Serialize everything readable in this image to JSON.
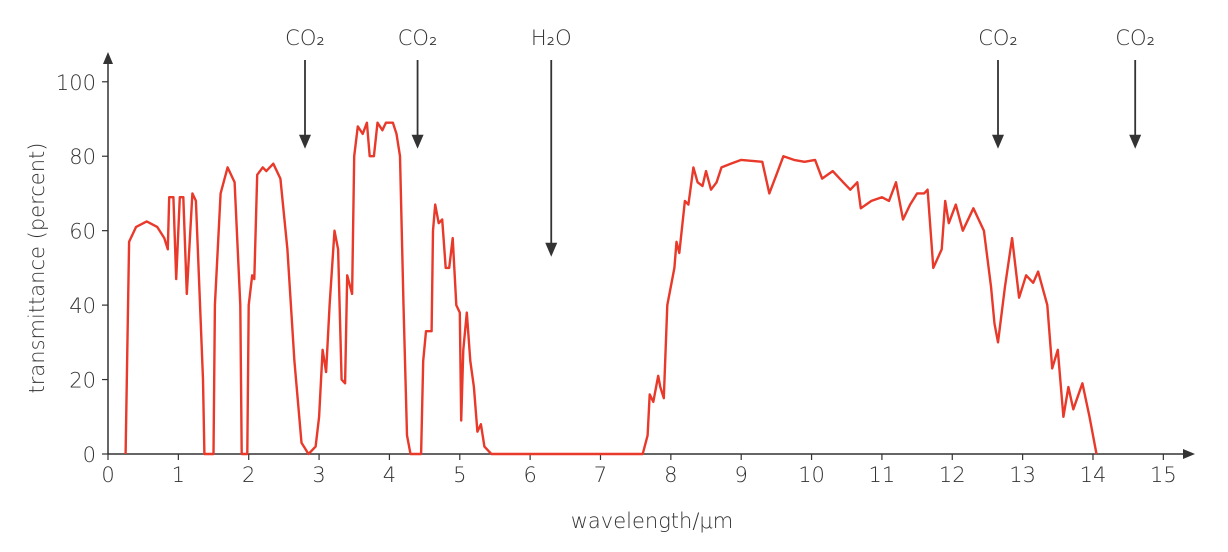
{
  "chart_data": {
    "type": "line",
    "xlabel": "wavelength/μm",
    "ylabel": "transmittance (percent)",
    "xlim": [
      0,
      15.45
    ],
    "ylim": [
      0,
      108
    ],
    "xticks": [
      0,
      1,
      2,
      3,
      4,
      5,
      6,
      7,
      8,
      9,
      10,
      11,
      12,
      13,
      14,
      15
    ],
    "yticks": [
      0,
      20,
      40,
      60,
      80,
      100
    ],
    "grid": false,
    "annotations": [
      {
        "text": "CO₂",
        "x": 2.8,
        "y": 82
      },
      {
        "text": "CO₂",
        "x": 4.4,
        "y": 82
      },
      {
        "text": "H₂O",
        "x": 6.3,
        "y": 53
      },
      {
        "text": "CO₂",
        "x": 12.65,
        "y": 82
      },
      {
        "text": "CO₂",
        "x": 14.6,
        "y": 82
      }
    ],
    "series": [
      {
        "color": "#e8392a",
        "x": [
          0.25,
          0.3,
          0.4,
          0.55,
          0.7,
          0.8,
          0.85,
          0.87,
          0.93,
          0.97,
          1.02,
          1.07,
          1.12,
          1.2,
          1.25,
          1.35,
          1.37,
          1.5,
          1.52,
          1.6,
          1.7,
          1.8,
          1.88,
          1.9,
          1.98,
          2.0,
          2.05,
          2.08,
          2.12,
          2.2,
          2.25,
          2.35,
          2.45,
          2.55,
          2.65,
          2.75,
          2.85,
          2.95,
          3.0,
          3.05,
          3.1,
          3.15,
          3.22,
          3.27,
          3.32,
          3.37,
          3.4,
          3.47,
          3.5,
          3.55,
          3.62,
          3.68,
          3.72,
          3.78,
          3.83,
          3.9,
          3.95,
          4.05,
          4.1,
          4.15,
          4.2,
          4.25,
          4.3,
          4.45,
          4.48,
          4.52,
          4.6,
          4.62,
          4.65,
          4.7,
          4.75,
          4.8,
          4.85,
          4.9,
          4.95,
          5.0,
          5.02,
          5.05,
          5.1,
          5.15,
          5.2,
          5.25,
          5.3,
          5.35,
          5.45,
          7.6,
          7.67,
          7.7,
          7.75,
          7.82,
          7.85,
          7.9,
          7.95,
          8.05,
          8.08,
          8.12,
          8.2,
          8.25,
          8.32,
          8.38,
          8.45,
          8.5,
          8.57,
          8.65,
          8.72,
          8.85,
          9.0,
          9.3,
          9.4,
          9.5,
          9.6,
          9.75,
          9.9,
          10.05,
          10.15,
          10.3,
          10.45,
          10.55,
          10.65,
          10.7,
          10.85,
          11.0,
          11.1,
          11.2,
          11.3,
          11.4,
          11.5,
          11.6,
          11.65,
          11.73,
          11.85,
          11.9,
          11.95,
          12.05,
          12.15,
          12.3,
          12.45,
          12.55,
          12.6,
          12.65,
          12.75,
          12.85,
          12.95,
          13.05,
          13.15,
          13.22,
          13.35,
          13.42,
          13.5,
          13.58,
          13.65,
          13.72,
          13.85,
          13.95,
          14.05
        ],
        "values": [
          0,
          57,
          61,
          62.5,
          61,
          58,
          55,
          69,
          69,
          47,
          69,
          69,
          43,
          70,
          68,
          20,
          0,
          0,
          40,
          70,
          77,
          73,
          40,
          0,
          0,
          40,
          48,
          47,
          75,
          77,
          76,
          78,
          74,
          55,
          25,
          3,
          0,
          2,
          10,
          28,
          22,
          40,
          60,
          55,
          20,
          19,
          48,
          43,
          80,
          88,
          86,
          89,
          80,
          80,
          89,
          87,
          89,
          89,
          86,
          80,
          40,
          5,
          0,
          0,
          25,
          33,
          33,
          60,
          67,
          62,
          63,
          50,
          50,
          58,
          40,
          38,
          9,
          28,
          38,
          25,
          18,
          6,
          8,
          2,
          0,
          0,
          5,
          16,
          14,
          21,
          18,
          15,
          40,
          50,
          57,
          54,
          68,
          67,
          77,
          73,
          72,
          76,
          71,
          73,
          77,
          78,
          79,
          78.5,
          70,
          75,
          80,
          79,
          78.5,
          79,
          74,
          76,
          73,
          71,
          73,
          66,
          68,
          69,
          68,
          73,
          63,
          67,
          70,
          70,
          71,
          50,
          55,
          68,
          62,
          67,
          60,
          66,
          60,
          45,
          35,
          30,
          45,
          58,
          42,
          48,
          46,
          49,
          40,
          23,
          28,
          10,
          18,
          12,
          19,
          10,
          0
        ]
      }
    ]
  }
}
